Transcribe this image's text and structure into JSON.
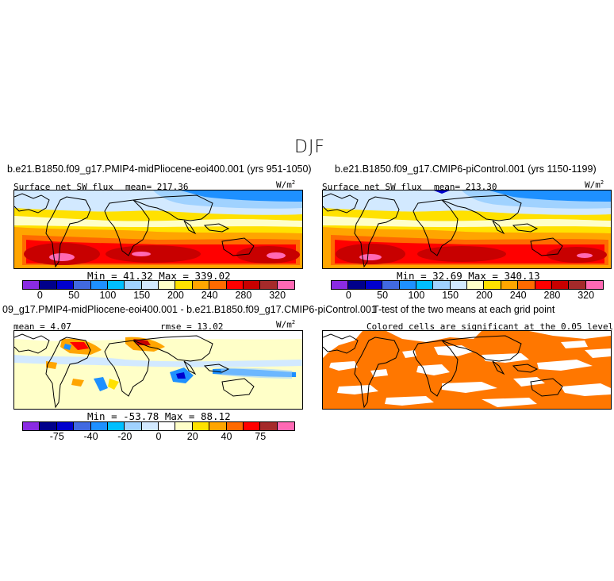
{
  "figure": {
    "title": "DJF"
  },
  "panels": {
    "p1": {
      "title": "b.e21.B1850.f09_g17.PMIP4-midPliocene-eoi400.001 (yrs 951-1050)",
      "variable": "Surface net SW flux",
      "mean": "mean= 217.36",
      "units": "W/m",
      "units_exp": "2",
      "minmax": "Min =  41.32  Max = 339.02"
    },
    "p2": {
      "title": "b.e21.B1850.f09_g17.CMIP6-piControl.001 (yrs 1150-1199)",
      "variable": "Surface net SW flux",
      "mean": "mean= 213.30",
      "units": "W/m",
      "units_exp": "2",
      "minmax": "Min =  32.69  Max = 340.13"
    },
    "p3": {
      "title": "09_g17.PMIP4-midPliocene-eoi400.001 - b.e21.B1850.f09_g17.CMIP6-piControl.001",
      "mean": "mean =   4.07",
      "rmse": "rmse =  13.02",
      "units": "W/m",
      "units_exp": "2",
      "minmax": "Min = -53.78  Max =   88.12"
    },
    "p4": {
      "title": "T-test of the two means at each grid point",
      "subtitle": "Colored cells are significant at the 0.05 level"
    }
  },
  "colorbar_abs": {
    "colors": [
      "#8a2be2",
      "#00008b",
      "#0000cd",
      "#4169e1",
      "#1e90ff",
      "#00bfff",
      "#a0d2ff",
      "#d2e9ff",
      "#ffffc8",
      "#ffe100",
      "#ffa500",
      "#ff6a00",
      "#ff0000",
      "#c80000",
      "#a52a2a",
      "#ff69b4"
    ],
    "ticks": [
      "0",
      "50",
      "100",
      "150",
      "200",
      "240",
      "280",
      "320"
    ]
  },
  "colorbar_diff": {
    "colors": [
      "#8a2be2",
      "#00008b",
      "#0000cd",
      "#4169e1",
      "#1e90ff",
      "#00bfff",
      "#a0d2ff",
      "#d2e9ff",
      "#ffffff",
      "#ffffc8",
      "#ffe100",
      "#ffa500",
      "#ff6a00",
      "#ff0000",
      "#a52a2a",
      "#ff69b4"
    ],
    "ticks": [
      "-75",
      "-40",
      "-20",
      "0",
      "20",
      "40",
      "75"
    ]
  },
  "colors": {
    "ttest_fill": "#ff7700"
  }
}
